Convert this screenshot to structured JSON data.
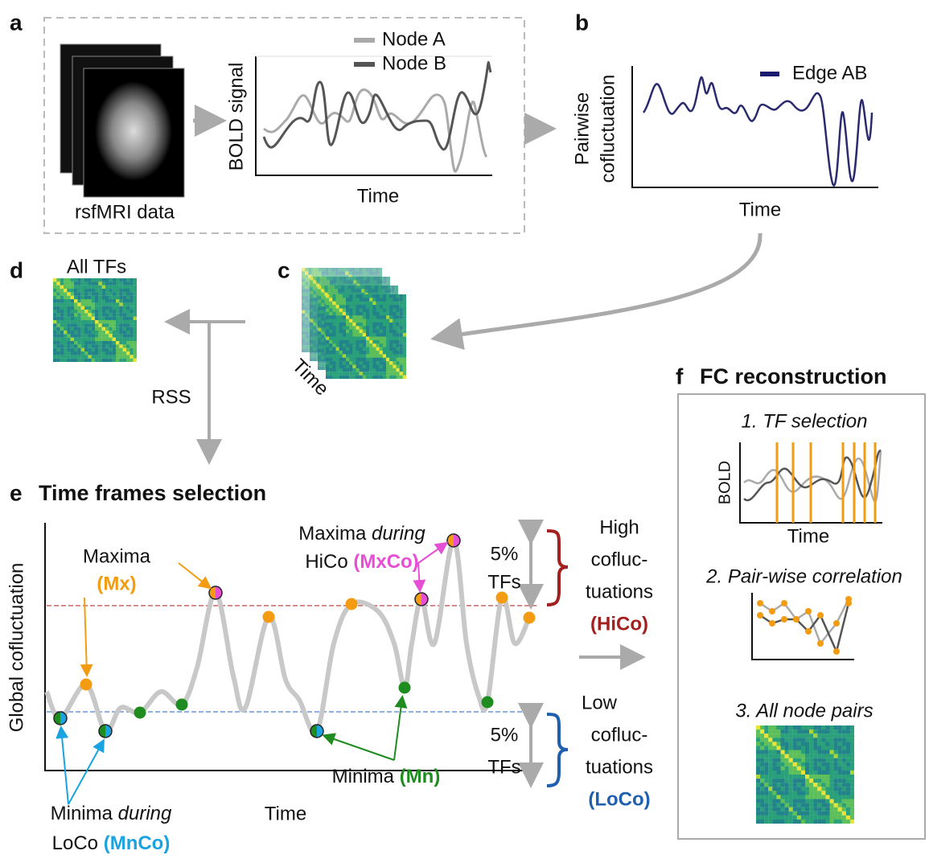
{
  "panel_labels": [
    "a",
    "b",
    "c",
    "d",
    "e",
    "f"
  ],
  "a": {
    "legend": [
      "Node A",
      "Node B"
    ],
    "y_label": "BOLD signal",
    "x_label": "Time",
    "caption": "rsfMRI data"
  },
  "b": {
    "legend": "Edge  AB",
    "y_label": [
      "Pairwise",
      "cofluctuation"
    ],
    "x_label": "Time"
  },
  "c": {
    "axis_label": "Time"
  },
  "d": {
    "title": "All TFs"
  },
  "rss": "RSS",
  "e": {
    "title": "Time frames selection",
    "y_label": "Global cofluctuation",
    "x_label": "Time",
    "maxima": {
      "text": "Maxima",
      "abbr": "(Mx)"
    },
    "maxima_during": {
      "text": "Maxima",
      "emph": "during",
      "text2": "HiCo",
      "abbr": "(MxCo)"
    },
    "minima": {
      "text": "Minima",
      "abbr": "(Mn)"
    },
    "minima_during": {
      "text": "Minima",
      "emph": "during",
      "text2": "LoCo",
      "abbr": "(MnCo)"
    },
    "high": {
      "percent": "5%",
      "unit": "TFs",
      "lines": [
        "High",
        "cofluc-",
        "tuations"
      ],
      "abbr": "(HiCo)"
    },
    "low": {
      "percent": "5%",
      "unit": "TFs",
      "lines": [
        "Low",
        "cofluc-",
        "tuations"
      ],
      "abbr": "(LoCo)"
    }
  },
  "f": {
    "title": "FC reconstruction",
    "steps": [
      "1. TF selection",
      "2. Pair-wise correlation",
      "3. All node pairs"
    ],
    "bold_label": "BOLD",
    "time_label": "Time"
  }
}
